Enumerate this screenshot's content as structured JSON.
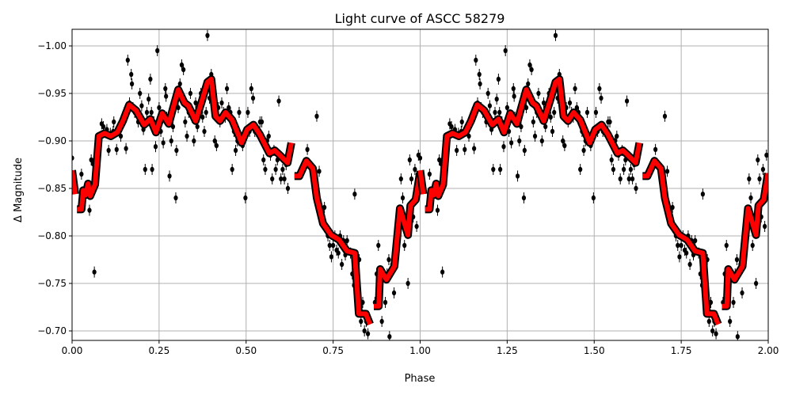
{
  "chart_data": {
    "type": "scatter",
    "title": "Light curve of ASCC 58279",
    "xlabel": "Phase",
    "ylabel": "Δ Magnitude",
    "xlim": [
      0,
      2
    ],
    "ylim": [
      -1.0175,
      -0.69
    ],
    "y_inverted": true,
    "grid": true,
    "xticks": [
      "0.00",
      "0.25",
      "0.50",
      "0.75",
      "1.00",
      "1.25",
      "1.50",
      "1.75",
      "2.00"
    ],
    "xtick_values": [
      0,
      0.25,
      0.5,
      0.75,
      1,
      1.25,
      1.5,
      1.75,
      2
    ],
    "yticks": [
      "−1.00",
      "−0.95",
      "−0.90",
      "−0.85",
      "−0.80",
      "−0.75",
      "−0.70"
    ],
    "ytick_values": [
      -1.0,
      -0.95,
      -0.9,
      -0.85,
      -0.8,
      -0.75,
      -0.7
    ],
    "phase_repeated": true,
    "colors": {
      "points": "#000000",
      "model": "#ff0000",
      "model_outline": "#000000",
      "grid": "#b0b0b0"
    },
    "points": [
      [
        0.0,
        -0.882
      ],
      [
        0.02,
        -0.83
      ],
      [
        0.027,
        -0.865
      ],
      [
        0.035,
        -0.845
      ],
      [
        0.05,
        -0.827
      ],
      [
        0.055,
        -0.88
      ],
      [
        0.06,
        -0.876
      ],
      [
        0.064,
        -0.762
      ],
      [
        0.07,
        -0.86
      ],
      [
        0.08,
        -0.903
      ],
      [
        0.085,
        -0.918
      ],
      [
        0.09,
        -0.915
      ],
      [
        0.1,
        -0.912
      ],
      [
        0.105,
        -0.89
      ],
      [
        0.11,
        -0.908
      ],
      [
        0.118,
        -0.91
      ],
      [
        0.12,
        -0.92
      ],
      [
        0.128,
        -0.891
      ],
      [
        0.14,
        -0.905
      ],
      [
        0.15,
        -0.93
      ],
      [
        0.155,
        -0.892
      ],
      [
        0.16,
        -0.985
      ],
      [
        0.165,
        -0.94
      ],
      [
        0.17,
        -0.97
      ],
      [
        0.172,
        -0.96
      ],
      [
        0.175,
        -0.935
      ],
      [
        0.18,
        -0.93
      ],
      [
        0.19,
        -0.92
      ],
      [
        0.195,
        -0.95
      ],
      [
        0.2,
        -0.937
      ],
      [
        0.205,
        -0.912
      ],
      [
        0.21,
        -0.87
      ],
      [
        0.215,
        -0.93
      ],
      [
        0.22,
        -0.944
      ],
      [
        0.225,
        -0.965
      ],
      [
        0.228,
        -0.93
      ],
      [
        0.23,
        -0.87
      ],
      [
        0.235,
        -0.92
      ],
      [
        0.24,
        -0.894
      ],
      [
        0.245,
        -0.995
      ],
      [
        0.25,
        -0.935
      ],
      [
        0.255,
        -0.91
      ],
      [
        0.262,
        -0.898
      ],
      [
        0.268,
        -0.955
      ],
      [
        0.27,
        -0.947
      ],
      [
        0.272,
        -0.925
      ],
      [
        0.28,
        -0.863
      ],
      [
        0.285,
        -0.9
      ],
      [
        0.29,
        -0.915
      ],
      [
        0.298,
        -0.84
      ],
      [
        0.3,
        -0.89
      ],
      [
        0.305,
        -0.935
      ],
      [
        0.31,
        -0.96
      ],
      [
        0.315,
        -0.98
      ],
      [
        0.32,
        -0.975
      ],
      [
        0.325,
        -0.92
      ],
      [
        0.33,
        -0.905
      ],
      [
        0.335,
        -0.93
      ],
      [
        0.34,
        -0.95
      ],
      [
        0.345,
        -0.925
      ],
      [
        0.35,
        -0.9
      ],
      [
        0.355,
        -0.94
      ],
      [
        0.36,
        -0.915
      ],
      [
        0.365,
        -0.93
      ],
      [
        0.37,
        -0.95
      ],
      [
        0.375,
        -0.925
      ],
      [
        0.38,
        -0.91
      ],
      [
        0.385,
        -0.93
      ],
      [
        0.389,
        -1.011
      ],
      [
        0.395,
        -0.945
      ],
      [
        0.4,
        -0.97
      ],
      [
        0.41,
        -0.9
      ],
      [
        0.415,
        -0.895
      ],
      [
        0.42,
        -0.935
      ],
      [
        0.425,
        -0.92
      ],
      [
        0.43,
        -0.94
      ],
      [
        0.435,
        -0.93
      ],
      [
        0.44,
        -0.925
      ],
      [
        0.445,
        -0.955
      ],
      [
        0.45,
        -0.935
      ],
      [
        0.455,
        -0.93
      ],
      [
        0.46,
        -0.87
      ],
      [
        0.465,
        -0.91
      ],
      [
        0.47,
        -0.89
      ],
      [
        0.475,
        -0.9
      ],
      [
        0.48,
        -0.93
      ],
      [
        0.49,
        -0.895
      ],
      [
        0.495,
        -0.9
      ],
      [
        0.498,
        -0.84
      ],
      [
        0.505,
        -0.93
      ],
      [
        0.51,
        -0.91
      ],
      [
        0.515,
        -0.955
      ],
      [
        0.52,
        -0.945
      ],
      [
        0.525,
        -0.91
      ],
      [
        0.53,
        -0.91
      ],
      [
        0.54,
        -0.92
      ],
      [
        0.545,
        -0.92
      ],
      [
        0.55,
        -0.88
      ],
      [
        0.555,
        -0.87
      ],
      [
        0.56,
        -0.9
      ],
      [
        0.565,
        -0.905
      ],
      [
        0.57,
        -0.885
      ],
      [
        0.575,
        -0.86
      ],
      [
        0.58,
        -0.89
      ],
      [
        0.585,
        -0.87
      ],
      [
        0.59,
        -0.88
      ],
      [
        0.594,
        -0.942
      ],
      [
        0.6,
        -0.86
      ],
      [
        0.605,
        -0.87
      ],
      [
        0.61,
        -0.86
      ],
      [
        0.615,
        -0.875
      ],
      [
        0.62,
        -0.85
      ],
      [
        0.676,
        -0.891
      ],
      [
        0.703,
        -0.926
      ],
      [
        0.71,
        -0.868
      ],
      [
        0.72,
        -0.82
      ],
      [
        0.725,
        -0.83
      ],
      [
        0.73,
        -0.805
      ],
      [
        0.735,
        -0.8
      ],
      [
        0.74,
        -0.79
      ],
      [
        0.745,
        -0.778
      ],
      [
        0.75,
        -0.79
      ],
      [
        0.755,
        -0.8
      ],
      [
        0.76,
        -0.785
      ],
      [
        0.765,
        -0.782
      ],
      [
        0.77,
        -0.8
      ],
      [
        0.775,
        -0.77
      ],
      [
        0.78,
        -0.795
      ],
      [
        0.785,
        -0.78
      ],
      [
        0.79,
        -0.795
      ],
      [
        0.8,
        -0.782
      ],
      [
        0.805,
        -0.76
      ],
      [
        0.81,
        -0.748
      ],
      [
        0.812,
        -0.844
      ],
      [
        0.82,
        -0.74
      ],
      [
        0.825,
        -0.775
      ],
      [
        0.83,
        -0.71
      ],
      [
        0.835,
        -0.73
      ],
      [
        0.84,
        -0.7
      ],
      [
        0.845,
        -0.71
      ],
      [
        0.85,
        -0.697
      ],
      [
        0.87,
        -0.73
      ],
      [
        0.875,
        -0.76
      ],
      [
        0.88,
        -0.79
      ],
      [
        0.885,
        -0.73
      ],
      [
        0.89,
        -0.71
      ],
      [
        0.9,
        -0.73
      ],
      [
        0.905,
        -0.76
      ],
      [
        0.91,
        -0.775
      ],
      [
        0.912,
        -0.694
      ],
      [
        0.92,
        -0.77
      ],
      [
        0.925,
        -0.74
      ],
      [
        0.93,
        -0.8
      ],
      [
        0.935,
        -0.82
      ],
      [
        0.94,
        -0.8
      ],
      [
        0.945,
        -0.86
      ],
      [
        0.95,
        -0.84
      ],
      [
        0.955,
        -0.79
      ],
      [
        0.96,
        -0.82
      ],
      [
        0.965,
        -0.75
      ],
      [
        0.97,
        -0.88
      ],
      [
        0.975,
        -0.86
      ],
      [
        0.98,
        -0.82
      ],
      [
        0.985,
        -0.87
      ],
      [
        0.99,
        -0.81
      ],
      [
        0.995,
        -0.885
      ]
    ],
    "model_segments": [
      [
        [
          0.0,
          -0.869
        ],
        [
          0.009,
          -0.844
        ]
      ],
      [
        [
          0.014,
          -0.828
        ],
        [
          0.027,
          -0.828
        ],
        [
          0.032,
          -0.848
        ],
        [
          0.039,
          -0.843
        ],
        [
          0.046,
          -0.855
        ],
        [
          0.052,
          -0.842
        ],
        [
          0.066,
          -0.854
        ],
        [
          0.077,
          -0.905
        ],
        [
          0.093,
          -0.908
        ],
        [
          0.111,
          -0.905
        ],
        [
          0.13,
          -0.909
        ],
        [
          0.146,
          -0.921
        ],
        [
          0.164,
          -0.938
        ],
        [
          0.184,
          -0.932
        ],
        [
          0.207,
          -0.917
        ],
        [
          0.225,
          -0.923
        ],
        [
          0.241,
          -0.909
        ],
        [
          0.259,
          -0.929
        ],
        [
          0.278,
          -0.918
        ],
        [
          0.289,
          -0.933
        ],
        [
          0.305,
          -0.954
        ],
        [
          0.323,
          -0.94
        ],
        [
          0.334,
          -0.937
        ],
        [
          0.355,
          -0.921
        ],
        [
          0.373,
          -0.942
        ],
        [
          0.389,
          -0.962
        ],
        [
          0.4,
          -0.965
        ],
        [
          0.412,
          -0.926
        ],
        [
          0.425,
          -0.921
        ],
        [
          0.441,
          -0.93
        ],
        [
          0.46,
          -0.922
        ],
        [
          0.487,
          -0.898
        ],
        [
          0.503,
          -0.912
        ],
        [
          0.521,
          -0.917
        ],
        [
          0.539,
          -0.907
        ],
        [
          0.567,
          -0.887
        ],
        [
          0.582,
          -0.89
        ],
        [
          0.594,
          -0.886
        ],
        [
          0.619,
          -0.877
        ],
        [
          0.63,
          -0.898
        ]
      ],
      [
        [
          0.639,
          -0.863
        ],
        [
          0.653,
          -0.863
        ],
        [
          0.673,
          -0.879
        ],
        [
          0.692,
          -0.871
        ],
        [
          0.703,
          -0.84
        ],
        [
          0.721,
          -0.813
        ],
        [
          0.744,
          -0.801
        ],
        [
          0.767,
          -0.796
        ],
        [
          0.79,
          -0.784
        ],
        [
          0.812,
          -0.782
        ],
        [
          0.824,
          -0.718
        ],
        [
          0.844,
          -0.718
        ],
        [
          0.856,
          -0.707
        ]
      ],
      [
        [
          0.867,
          -0.726
        ],
        [
          0.881,
          -0.726
        ],
        [
          0.885,
          -0.765
        ],
        [
          0.903,
          -0.754
        ],
        [
          0.926,
          -0.768
        ],
        [
          0.942,
          -0.829
        ],
        [
          0.965,
          -0.801
        ],
        [
          0.972,
          -0.832
        ],
        [
          0.987,
          -0.838
        ],
        [
          0.994,
          -0.854
        ],
        [
          0.999,
          -0.866
        ]
      ]
    ]
  }
}
